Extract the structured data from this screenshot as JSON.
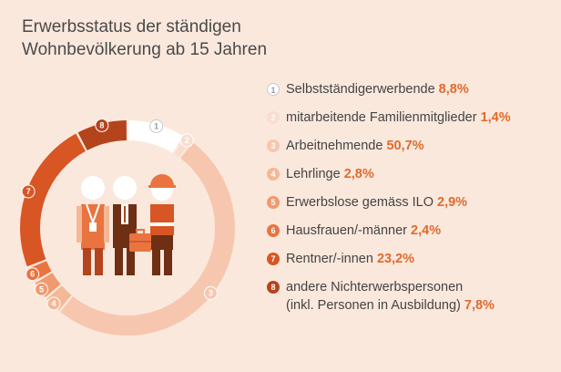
{
  "title_lines": [
    "Erwerbsstatus der ständigen",
    "Wohnbevölkerung ab 15 Jahren"
  ],
  "chart_data": {
    "type": "donut",
    "title": "Erwerbsstatus der ständigen Wohnbevölkerung ab 15 Jahren",
    "series": [
      {
        "id": "1",
        "name": "Selbstständigerwerbende",
        "value": 8.8,
        "label": "8,8%",
        "color": "#ffffff",
        "text": "#c9c9c9"
      },
      {
        "id": "2",
        "name": "mitarbeitende Familienmitglieder",
        "value": 1.4,
        "label": "1,4%",
        "color": "#f9ddd0",
        "text": "#ffffff"
      },
      {
        "id": "3",
        "name": "Arbeitnehmende",
        "value": 50.7,
        "label": "50,7%",
        "color": "#f6c7ae",
        "text": "#ffffff"
      },
      {
        "id": "4",
        "name": "Lehrlinge",
        "value": 2.8,
        "label": "2,8%",
        "color": "#f3b896",
        "text": "#ffffff"
      },
      {
        "id": "5",
        "name": "Erwerbslose gemäss ILO",
        "value": 2.9,
        "label": "2,9%",
        "color": "#ef9a6f",
        "text": "#ffffff"
      },
      {
        "id": "6",
        "name": "Hausfrauen/-männer",
        "value": 2.4,
        "label": "2,4%",
        "color": "#e9743f",
        "text": "#ffffff"
      },
      {
        "id": "7",
        "name": "Rentner/-innen",
        "value": 23.2,
        "label": "23,2%",
        "color": "#d85624",
        "text": "#ffffff"
      },
      {
        "id": "8",
        "name_lines": [
          "andere Nichterwerbspersonen",
          "(inkl. Personen in Ausbildung)"
        ],
        "value": 7.8,
        "label": "7,8%",
        "color": "#b4441c",
        "text": "#ffffff"
      }
    ]
  }
}
